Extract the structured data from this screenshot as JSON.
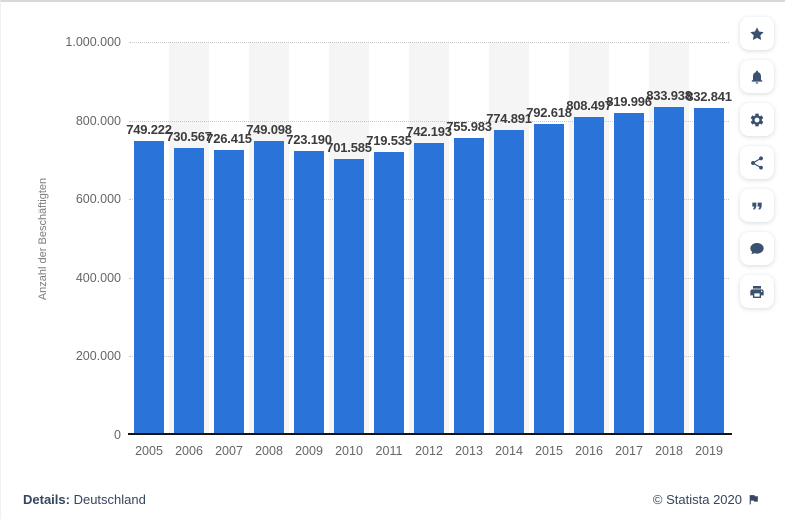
{
  "chart_data": {
    "type": "bar",
    "title": "",
    "xlabel": "",
    "ylabel": "Anzahl der Beschäftigten",
    "categories": [
      "2005",
      "2006",
      "2007",
      "2008",
      "2009",
      "2010",
      "2011",
      "2012",
      "2013",
      "2014",
      "2015",
      "2016",
      "2017",
      "2018",
      "2019"
    ],
    "values": [
      749222,
      730567,
      726415,
      749098,
      723190,
      701585,
      719535,
      742193,
      755983,
      774891,
      792618,
      808497,
      819996,
      833938,
      832841
    ],
    "value_labels": [
      "749.222",
      "730.567",
      "726.415",
      "749.098",
      "723.190",
      "701.585",
      "719.535",
      "742.193",
      "755.983",
      "774.891",
      "792.618",
      "808.497",
      "819.996",
      "833.938",
      "832.841"
    ],
    "ylim": [
      0,
      1000000
    ],
    "y_tick_values": [
      0,
      200000,
      400000,
      600000,
      800000,
      1000000
    ],
    "y_tick_labels": [
      "0",
      "200.000",
      "400.000",
      "600.000",
      "800.000",
      "1.000.000"
    ],
    "grid": "dotted-horizontal",
    "legend": "none",
    "bar_color": "#2a73d8",
    "stripe_color": "#f5f5f5"
  },
  "sidebar": {
    "buttons": [
      {
        "name": "favorite-button",
        "icon": "star-icon"
      },
      {
        "name": "notification-button",
        "icon": "bell-icon"
      },
      {
        "name": "settings-button",
        "icon": "gear-icon"
      },
      {
        "name": "share-button",
        "icon": "share-icon"
      },
      {
        "name": "citation-button",
        "icon": "quote-icon"
      },
      {
        "name": "comment-button",
        "icon": "comment-icon"
      },
      {
        "name": "print-button",
        "icon": "print-icon"
      }
    ]
  },
  "footer": {
    "details_label": "Details:",
    "details_value": " Deutschland",
    "copyright": "© Statista 2020",
    "flag_icon": "flag-icon"
  },
  "colors": {
    "bar": "#2a73d8",
    "icon_navy": "#3a5170",
    "footer_navy": "#36465d",
    "value_label": "#3c3c3c",
    "axis_text": "#666666"
  }
}
